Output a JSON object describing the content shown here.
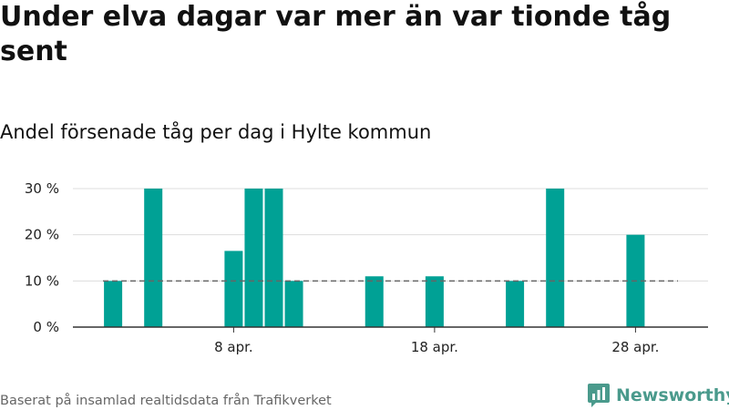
{
  "title": "Under elva dagar var mer än var tionde tåg sent",
  "subtitle": "Andel försenade tåg per dag i Hylte kommun",
  "source": "Baserat på insamlad realtidsdata från Trafikverket",
  "brand": {
    "name": "Newsworthy",
    "icon": "bar-chart-logo-icon",
    "color": "#4a9a8c"
  },
  "chart_data": {
    "type": "bar",
    "title": "Andel försenade tåg per dag i Hylte kommun",
    "xlabel": "",
    "ylabel": "",
    "ylim": [
      0,
      30
    ],
    "yticks": [
      0,
      10,
      20,
      30
    ],
    "ytick_labels": [
      "0 %",
      "10 %",
      "20 %",
      "30 %"
    ],
    "xlim": [
      "2024-03-31",
      "2024-05-01"
    ],
    "xtick_dates": [
      "2024-04-08",
      "2024-04-18",
      "2024-04-28"
    ],
    "xtick_labels": [
      "8 apr.",
      "18 apr.",
      "28 apr."
    ],
    "bar_color": "#00a195",
    "grid": true,
    "reference_line": {
      "value": 10,
      "style": "dashed",
      "color": "#666666"
    },
    "bars": [
      {
        "date": "2024-04-02",
        "value": 10
      },
      {
        "date": "2024-04-04",
        "value": 30
      },
      {
        "date": "2024-04-08",
        "value": 16.5
      },
      {
        "date": "2024-04-09",
        "value": 30
      },
      {
        "date": "2024-04-10",
        "value": 30
      },
      {
        "date": "2024-04-11",
        "value": 10
      },
      {
        "date": "2024-04-15",
        "value": 11
      },
      {
        "date": "2024-04-18",
        "value": 11
      },
      {
        "date": "2024-04-22",
        "value": 10
      },
      {
        "date": "2024-04-24",
        "value": 30
      },
      {
        "date": "2024-04-28",
        "value": 20
      }
    ]
  }
}
